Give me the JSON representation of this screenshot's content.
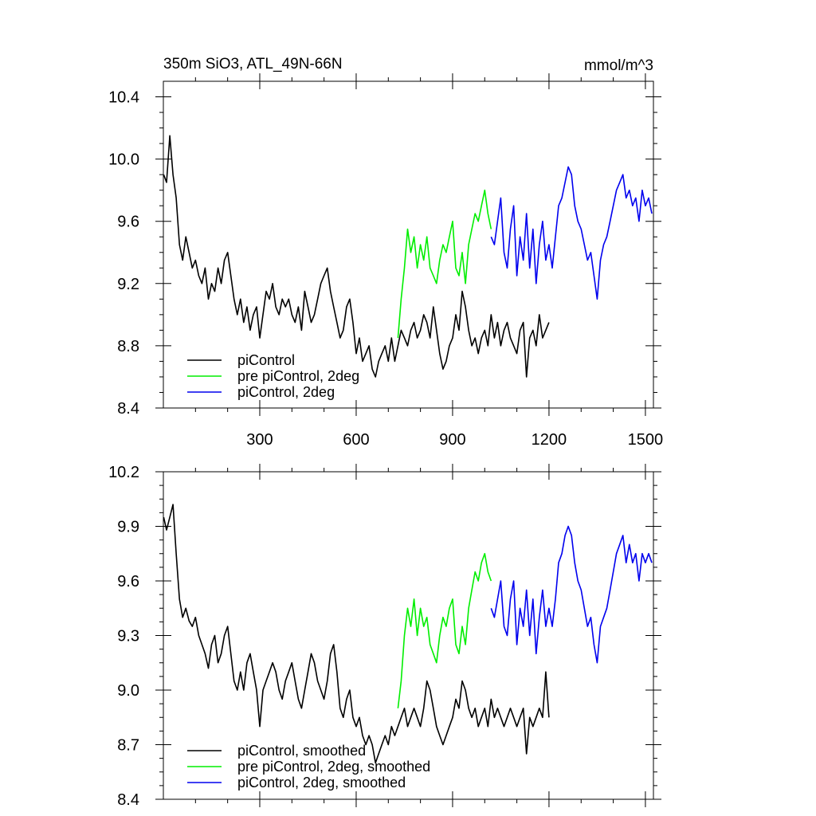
{
  "header": {
    "left_title": "350m SiO3, ATL_49N-66N",
    "right_units": "mmol/m^3"
  },
  "chart_data": [
    {
      "type": "line",
      "panel": "top",
      "xlim": [
        0,
        1525
      ],
      "ylim": [
        8.4,
        10.5
      ],
      "xticks": [
        300,
        600,
        900,
        1200,
        1500
      ],
      "xtick_labels": [
        "300",
        "600",
        "900",
        "1200",
        "1500"
      ],
      "yticks": [
        8.4,
        8.8,
        9.2,
        9.6,
        10.0,
        10.4
      ],
      "ytick_labels": [
        "8.4",
        "8.8",
        "9.2",
        "9.6",
        "10.0",
        "10.4"
      ],
      "legend_position": "bottom-left",
      "grid": false,
      "series": [
        {
          "name": "piControl",
          "color": "#000000",
          "x": [
            1,
            10,
            20,
            30,
            40,
            50,
            60,
            70,
            80,
            90,
            100,
            110,
            120,
            130,
            140,
            150,
            160,
            170,
            180,
            190,
            200,
            210,
            220,
            230,
            240,
            250,
            260,
            270,
            280,
            290,
            300,
            310,
            320,
            330,
            340,
            350,
            360,
            370,
            380,
            390,
            400,
            410,
            420,
            430,
            440,
            450,
            460,
            470,
            480,
            490,
            500,
            510,
            520,
            530,
            540,
            550,
            560,
            570,
            580,
            590,
            600,
            610,
            620,
            630,
            640,
            650,
            660,
            670,
            680,
            690,
            700,
            710,
            720,
            730,
            740,
            750,
            760,
            770,
            780,
            790,
            800,
            810,
            820,
            830,
            840,
            850,
            860,
            870,
            880,
            890,
            900,
            910,
            920,
            930,
            940,
            950,
            960,
            970,
            980,
            990,
            1000,
            1010,
            1020,
            1030,
            1040,
            1050,
            1060,
            1070,
            1080,
            1090,
            1100,
            1110,
            1120,
            1130,
            1140,
            1150,
            1160,
            1170,
            1180,
            1190,
            1200
          ],
          "y": [
            9.9,
            9.85,
            10.15,
            9.9,
            9.75,
            9.45,
            9.35,
            9.5,
            9.4,
            9.3,
            9.35,
            9.25,
            9.2,
            9.3,
            9.1,
            9.2,
            9.15,
            9.3,
            9.2,
            9.35,
            9.4,
            9.25,
            9.1,
            9.0,
            9.1,
            8.95,
            9.05,
            8.9,
            9.0,
            9.05,
            8.85,
            9.0,
            9.15,
            9.1,
            9.2,
            9.05,
            9.0,
            9.1,
            9.05,
            9.1,
            9.0,
            8.95,
            9.05,
            8.9,
            9.15,
            9.05,
            8.95,
            9.0,
            9.1,
            9.2,
            9.25,
            9.3,
            9.15,
            9.05,
            8.95,
            8.85,
            8.9,
            9.05,
            9.1,
            8.95,
            8.75,
            8.85,
            8.7,
            8.75,
            8.8,
            8.65,
            8.6,
            8.7,
            8.75,
            8.8,
            8.7,
            8.85,
            8.7,
            8.8,
            8.9,
            8.85,
            8.8,
            8.9,
            8.95,
            8.85,
            8.9,
            9.0,
            8.95,
            8.85,
            9.05,
            8.9,
            8.75,
            8.65,
            8.7,
            8.8,
            8.85,
            9.0,
            8.9,
            9.15,
            9.05,
            8.9,
            8.8,
            8.85,
            8.75,
            8.85,
            8.9,
            8.8,
            9.0,
            8.85,
            8.95,
            8.8,
            8.9,
            8.95,
            8.85,
            8.8,
            8.75,
            8.9,
            8.95,
            8.6,
            8.85,
            8.9,
            8.8,
            9.0,
            8.85,
            8.9,
            8.95
          ]
        },
        {
          "name": "pre piControl, 2deg",
          "color": "#00ee00",
          "x": [
            730,
            740,
            750,
            760,
            770,
            780,
            790,
            800,
            810,
            820,
            830,
            840,
            850,
            860,
            870,
            880,
            890,
            900,
            910,
            920,
            930,
            940,
            950,
            960,
            970,
            980,
            990,
            1000,
            1010,
            1020
          ],
          "y": [
            8.85,
            9.1,
            9.3,
            9.55,
            9.4,
            9.5,
            9.3,
            9.45,
            9.35,
            9.5,
            9.3,
            9.25,
            9.2,
            9.35,
            9.45,
            9.4,
            9.5,
            9.6,
            9.3,
            9.25,
            9.4,
            9.2,
            9.45,
            9.55,
            9.65,
            9.6,
            9.7,
            9.8,
            9.65,
            9.55
          ]
        },
        {
          "name": "piControl, 2deg",
          "color": "#0000ee",
          "x": [
            1020,
            1030,
            1040,
            1050,
            1060,
            1070,
            1080,
            1090,
            1100,
            1110,
            1120,
            1130,
            1140,
            1150,
            1160,
            1170,
            1180,
            1190,
            1200,
            1210,
            1220,
            1230,
            1240,
            1250,
            1260,
            1270,
            1280,
            1290,
            1300,
            1310,
            1320,
            1330,
            1340,
            1350,
            1360,
            1370,
            1380,
            1390,
            1400,
            1410,
            1420,
            1430,
            1440,
            1450,
            1460,
            1470,
            1480,
            1490,
            1500,
            1510,
            1520
          ],
          "y": [
            9.5,
            9.45,
            9.6,
            9.75,
            9.4,
            9.3,
            9.55,
            9.7,
            9.25,
            9.5,
            9.35,
            9.65,
            9.3,
            9.55,
            9.2,
            9.45,
            9.6,
            9.35,
            9.45,
            9.3,
            9.5,
            9.7,
            9.75,
            9.85,
            9.95,
            9.9,
            9.7,
            9.6,
            9.55,
            9.45,
            9.35,
            9.4,
            9.25,
            9.1,
            9.35,
            9.45,
            9.5,
            9.6,
            9.7,
            9.8,
            9.85,
            9.9,
            9.75,
            9.8,
            9.7,
            9.75,
            9.6,
            9.8,
            9.7,
            9.75,
            9.65
          ]
        }
      ]
    },
    {
      "type": "line",
      "panel": "bottom",
      "xlim": [
        0,
        1525
      ],
      "ylim": [
        8.4,
        10.2
      ],
      "xticks": [
        300,
        600,
        900,
        1200,
        1500
      ],
      "xtick_labels": [
        "",
        "",
        "",
        "",
        ""
      ],
      "yticks": [
        8.4,
        8.7,
        9.0,
        9.3,
        9.6,
        9.9,
        10.2
      ],
      "ytick_labels": [
        "8.4",
        "8.7",
        "9.0",
        "9.3",
        "9.6",
        "9.9",
        "10.2"
      ],
      "legend_position": "bottom-left",
      "grid": false,
      "series": [
        {
          "name": "piControl, smoothed",
          "color": "#000000",
          "x": [
            1,
            10,
            20,
            30,
            40,
            50,
            60,
            70,
            80,
            90,
            100,
            110,
            120,
            130,
            140,
            150,
            160,
            170,
            180,
            190,
            200,
            210,
            220,
            230,
            240,
            250,
            260,
            270,
            280,
            290,
            300,
            310,
            320,
            330,
            340,
            350,
            360,
            370,
            380,
            390,
            400,
            410,
            420,
            430,
            440,
            450,
            460,
            470,
            480,
            490,
            500,
            510,
            520,
            530,
            540,
            550,
            560,
            570,
            580,
            590,
            600,
            610,
            620,
            630,
            640,
            650,
            660,
            670,
            680,
            690,
            700,
            710,
            720,
            730,
            740,
            750,
            760,
            770,
            780,
            790,
            800,
            810,
            820,
            830,
            840,
            850,
            860,
            870,
            880,
            890,
            900,
            910,
            920,
            930,
            940,
            950,
            960,
            970,
            980,
            990,
            1000,
            1010,
            1020,
            1030,
            1040,
            1050,
            1060,
            1070,
            1080,
            1090,
            1100,
            1110,
            1120,
            1130,
            1140,
            1150,
            1160,
            1170,
            1180,
            1190,
            1200
          ],
          "y": [
            9.95,
            9.88,
            9.95,
            10.02,
            9.75,
            9.5,
            9.4,
            9.45,
            9.38,
            9.35,
            9.4,
            9.3,
            9.25,
            9.2,
            9.12,
            9.25,
            9.3,
            9.15,
            9.2,
            9.3,
            9.35,
            9.2,
            9.05,
            9.0,
            9.1,
            9.0,
            9.15,
            9.2,
            9.1,
            9.0,
            8.8,
            9.0,
            9.05,
            9.1,
            9.15,
            9.1,
            9.0,
            8.95,
            9.05,
            9.1,
            9.15,
            9.05,
            8.95,
            8.9,
            9.0,
            9.1,
            9.2,
            9.15,
            9.05,
            9.0,
            8.95,
            9.05,
            9.2,
            9.25,
            9.1,
            8.9,
            8.85,
            8.95,
            9.0,
            8.85,
            8.8,
            8.85,
            8.75,
            8.7,
            8.75,
            8.7,
            8.6,
            8.65,
            8.7,
            8.75,
            8.7,
            8.8,
            8.75,
            8.8,
            8.85,
            8.9,
            8.8,
            8.85,
            8.9,
            8.85,
            8.8,
            8.9,
            9.05,
            9.0,
            8.9,
            8.8,
            8.75,
            8.7,
            8.75,
            8.8,
            8.85,
            8.95,
            8.9,
            9.05,
            9.0,
            8.9,
            8.85,
            8.9,
            8.8,
            8.85,
            8.9,
            8.8,
            8.95,
            8.85,
            8.9,
            8.85,
            8.8,
            8.85,
            8.9,
            8.85,
            8.8,
            8.85,
            8.9,
            8.65,
            8.85,
            8.8,
            8.85,
            8.9,
            8.85,
            9.1,
            8.85
          ]
        },
        {
          "name": "pre piControl, 2deg, smoothed",
          "color": "#00ee00",
          "x": [
            730,
            740,
            750,
            760,
            770,
            780,
            790,
            800,
            810,
            820,
            830,
            840,
            850,
            860,
            870,
            880,
            890,
            900,
            910,
            920,
            930,
            940,
            950,
            960,
            970,
            980,
            990,
            1000,
            1010,
            1020
          ],
          "y": [
            8.9,
            9.05,
            9.3,
            9.45,
            9.35,
            9.5,
            9.3,
            9.45,
            9.35,
            9.4,
            9.25,
            9.2,
            9.15,
            9.3,
            9.4,
            9.35,
            9.45,
            9.5,
            9.25,
            9.2,
            9.35,
            9.25,
            9.45,
            9.55,
            9.65,
            9.6,
            9.7,
            9.75,
            9.65,
            9.6
          ]
        },
        {
          "name": "piControl, 2deg, smoothed",
          "color": "#0000ee",
          "x": [
            1020,
            1030,
            1040,
            1050,
            1060,
            1070,
            1080,
            1090,
            1100,
            1110,
            1120,
            1130,
            1140,
            1150,
            1160,
            1170,
            1180,
            1190,
            1200,
            1210,
            1220,
            1230,
            1240,
            1250,
            1260,
            1270,
            1280,
            1290,
            1300,
            1310,
            1320,
            1330,
            1340,
            1350,
            1360,
            1370,
            1380,
            1390,
            1400,
            1410,
            1420,
            1430,
            1440,
            1450,
            1460,
            1470,
            1480,
            1490,
            1500,
            1510,
            1520
          ],
          "y": [
            9.45,
            9.4,
            9.5,
            9.6,
            9.35,
            9.3,
            9.5,
            9.6,
            9.25,
            9.45,
            9.35,
            9.55,
            9.3,
            9.5,
            9.2,
            9.4,
            9.55,
            9.35,
            9.45,
            9.35,
            9.5,
            9.7,
            9.75,
            9.85,
            9.9,
            9.85,
            9.7,
            9.6,
            9.55,
            9.45,
            9.35,
            9.4,
            9.25,
            9.15,
            9.35,
            9.4,
            9.45,
            9.55,
            9.65,
            9.75,
            9.8,
            9.85,
            9.7,
            9.8,
            9.7,
            9.75,
            9.6,
            9.75,
            9.7,
            9.75,
            9.7
          ]
        }
      ]
    }
  ]
}
